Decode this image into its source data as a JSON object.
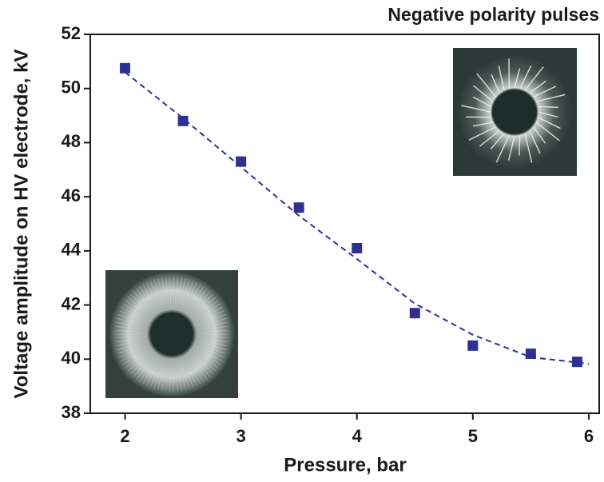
{
  "chart_data": {
    "type": "scatter",
    "title": "Negative polarity pulses",
    "x_label": "Pressure, bar",
    "y_label": "Voltage amplitude  on HV electrode, kV",
    "xlim": [
      1.7,
      6.09
    ],
    "ylim": [
      38,
      52
    ],
    "xticks": [
      2,
      3,
      4,
      5,
      6
    ],
    "yticks": [
      38,
      40,
      42,
      44,
      46,
      48,
      50,
      52
    ],
    "series": [
      {
        "color": "#2e3192",
        "style": "markers",
        "x": [
          2,
          2.5,
          3,
          3.5,
          4,
          4.5,
          5,
          5.5,
          5.9
        ],
        "values": [
          50.75,
          48.8,
          47.3,
          45.6,
          44.1,
          41.7,
          40.5,
          40.2,
          39.9
        ]
      },
      {
        "color": "#2e3192",
        "style": "dashed-line",
        "x": [
          2,
          2.5,
          3,
          3.5,
          4,
          4.5,
          5,
          5.5,
          6
        ],
        "values": [
          50.6,
          48.9,
          47.1,
          45.3,
          43.7,
          42.05,
          40.9,
          40.07,
          39.83
        ]
      }
    ]
  }
}
